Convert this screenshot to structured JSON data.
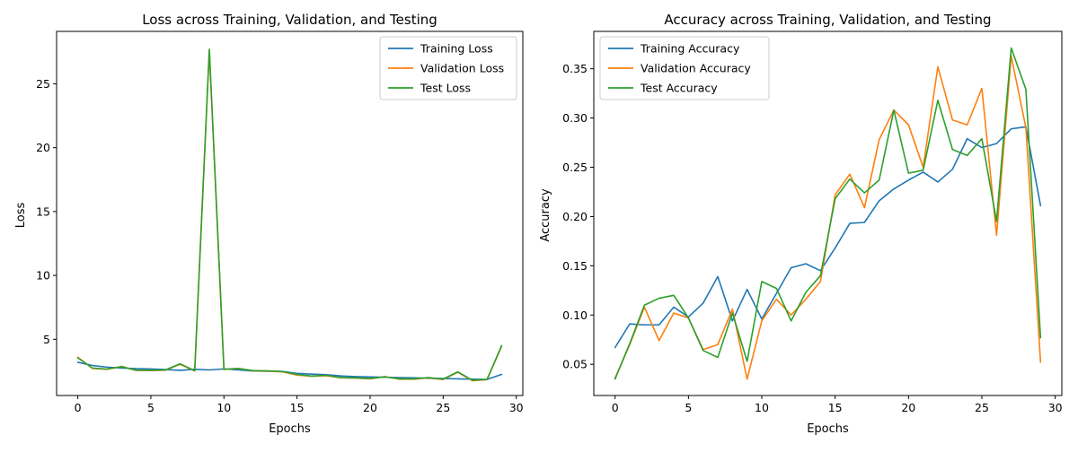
{
  "chart_data": [
    {
      "type": "line",
      "title": "Loss across Training, Validation, and Testing",
      "xlabel": "Epochs",
      "ylabel": "Loss",
      "xlim": [
        -1.45,
        30.45
      ],
      "ylim": [
        0.6,
        29.1
      ],
      "xticks": [
        0,
        5,
        10,
        15,
        20,
        25,
        30
      ],
      "yticks": [
        5,
        10,
        15,
        20,
        25
      ],
      "grid": false,
      "legend_position": "top-right",
      "x": [
        0,
        1,
        2,
        3,
        4,
        5,
        6,
        7,
        8,
        9,
        10,
        11,
        12,
        13,
        14,
        15,
        16,
        17,
        18,
        19,
        20,
        21,
        22,
        23,
        24,
        25,
        26,
        27,
        28,
        29
      ],
      "series": [
        {
          "name": "Training Loss",
          "color": "#1f77b4",
          "values": [
            3.2,
            2.95,
            2.82,
            2.75,
            2.7,
            2.68,
            2.63,
            2.57,
            2.65,
            2.6,
            2.68,
            2.6,
            2.52,
            2.5,
            2.48,
            2.33,
            2.27,
            2.23,
            2.13,
            2.08,
            2.05,
            2.03,
            2.0,
            1.98,
            1.95,
            1.93,
            1.9,
            1.88,
            1.86,
            2.25
          ]
        },
        {
          "name": "Validation Loss",
          "color": "#ff7f0e",
          "values": [
            3.6,
            2.72,
            2.65,
            2.88,
            2.56,
            2.55,
            2.58,
            3.05,
            2.52,
            27.6,
            2.64,
            2.72,
            2.53,
            2.52,
            2.45,
            2.2,
            2.1,
            2.15,
            1.98,
            1.96,
            1.9,
            2.08,
            1.88,
            1.88,
            1.98,
            1.85,
            2.42,
            1.75,
            1.84,
            4.45
          ]
        },
        {
          "name": "Test Loss",
          "color": "#2ca02c",
          "values": [
            3.55,
            2.75,
            2.67,
            2.85,
            2.58,
            2.57,
            2.6,
            3.08,
            2.54,
            27.7,
            2.66,
            2.7,
            2.55,
            2.53,
            2.47,
            2.25,
            2.12,
            2.18,
            2.0,
            1.98,
            1.93,
            2.06,
            1.9,
            1.9,
            2.0,
            1.88,
            2.45,
            1.8,
            1.86,
            4.5
          ]
        }
      ]
    },
    {
      "type": "line",
      "title": "Accuracy across Training, Validation, and Testing",
      "xlabel": "Epochs",
      "ylabel": "Accuracy",
      "xlim": [
        -1.45,
        30.45
      ],
      "ylim": [
        0.0183,
        0.3879
      ],
      "xticks": [
        0,
        5,
        10,
        15,
        20,
        25,
        30
      ],
      "yticks": [
        0.05,
        0.1,
        0.15,
        0.2,
        0.25,
        0.3,
        0.35
      ],
      "ytick_labels": [
        "0.05",
        "0.10",
        "0.15",
        "0.20",
        "0.25",
        "0.30",
        "0.35"
      ],
      "grid": false,
      "legend_position": "top-left",
      "x": [
        0,
        1,
        2,
        3,
        4,
        5,
        6,
        7,
        8,
        9,
        10,
        11,
        12,
        13,
        14,
        15,
        16,
        17,
        18,
        19,
        20,
        21,
        22,
        23,
        24,
        25,
        26,
        27,
        28,
        29
      ],
      "series": [
        {
          "name": "Training Accuracy",
          "color": "#1f77b4",
          "values": [
            0.067,
            0.091,
            0.09,
            0.09,
            0.108,
            0.098,
            0.112,
            0.139,
            0.094,
            0.126,
            0.096,
            0.122,
            0.148,
            0.152,
            0.145,
            0.168,
            0.193,
            0.194,
            0.216,
            0.228,
            0.237,
            0.245,
            0.235,
            0.248,
            0.279,
            0.27,
            0.274,
            0.289,
            0.291,
            0.211
          ]
        },
        {
          "name": "Validation Accuracy",
          "color": "#ff7f0e",
          "values": [
            0.036,
            0.07,
            0.108,
            0.074,
            0.102,
            0.097,
            0.065,
            0.07,
            0.106,
            0.035,
            0.094,
            0.116,
            0.1,
            0.116,
            0.134,
            0.222,
            0.243,
            0.209,
            0.278,
            0.308,
            0.293,
            0.25,
            0.352,
            0.298,
            0.293,
            0.33,
            0.181,
            0.363,
            0.29,
            0.052
          ]
        },
        {
          "name": "Test Accuracy",
          "color": "#2ca02c",
          "values": [
            0.035,
            0.071,
            0.11,
            0.117,
            0.12,
            0.097,
            0.064,
            0.057,
            0.102,
            0.053,
            0.134,
            0.127,
            0.094,
            0.123,
            0.14,
            0.218,
            0.238,
            0.224,
            0.237,
            0.308,
            0.244,
            0.247,
            0.318,
            0.268,
            0.262,
            0.279,
            0.195,
            0.371,
            0.329,
            0.077
          ]
        }
      ]
    }
  ]
}
